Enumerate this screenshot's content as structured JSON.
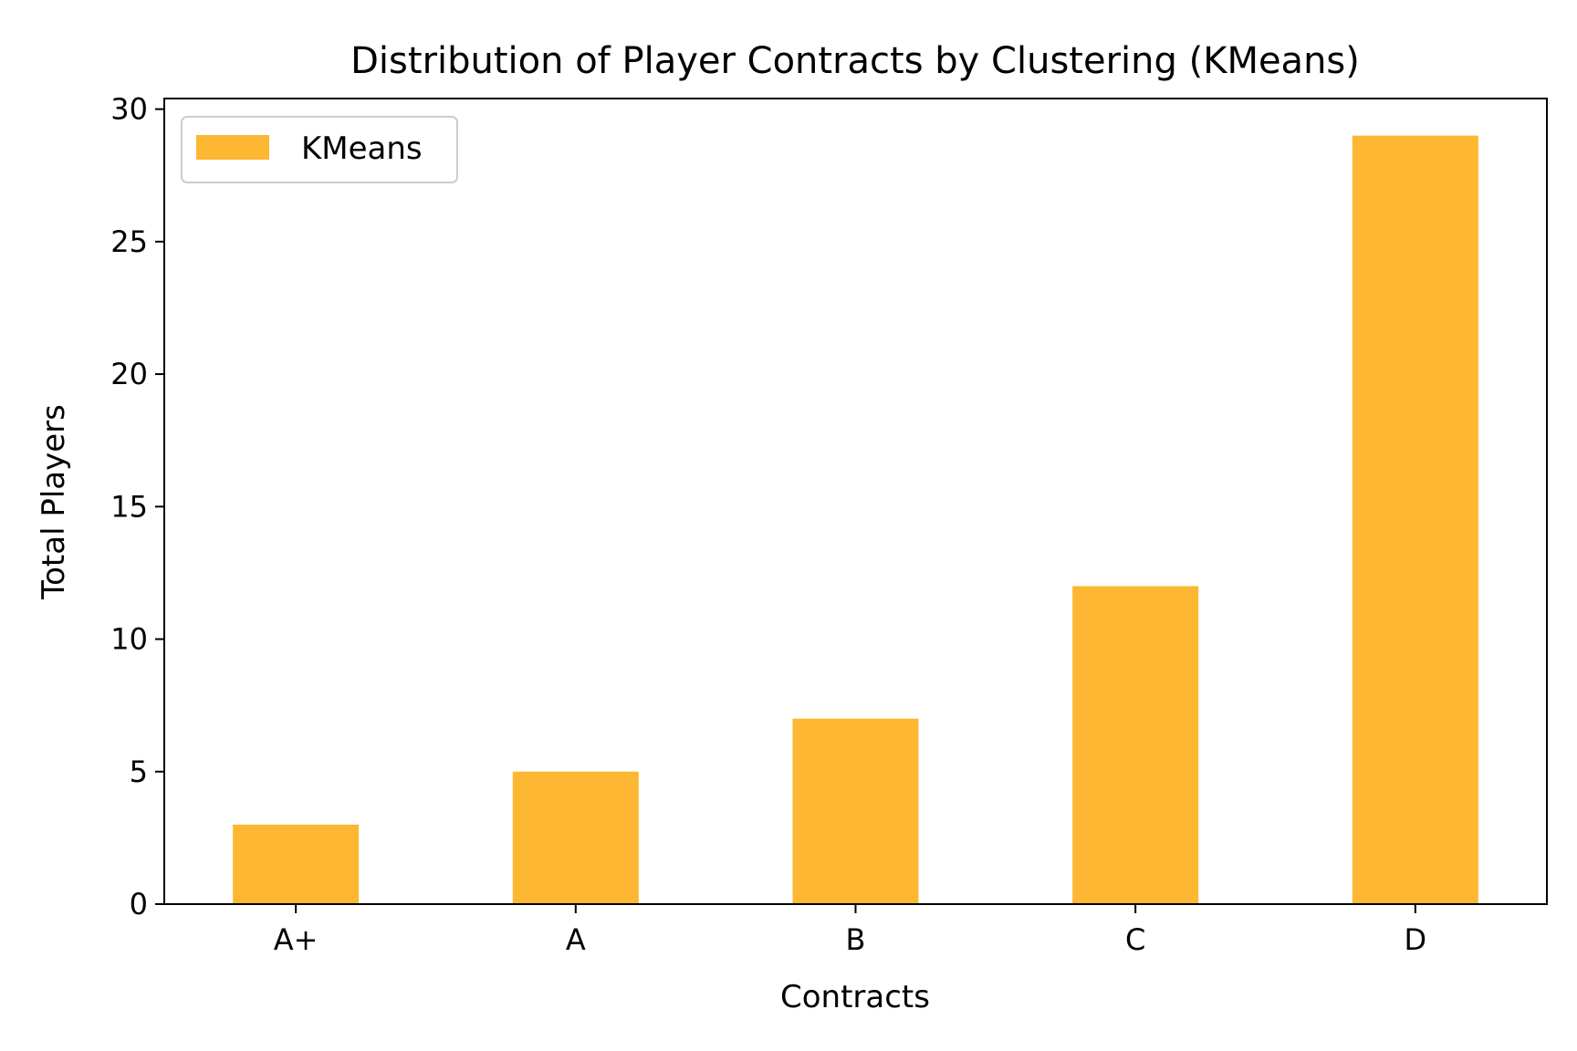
{
  "chart_data": {
    "type": "bar",
    "title": "Distribution of Player Contracts by Clustering (KMeans)",
    "xlabel": "Contracts",
    "ylabel": "Total Players",
    "categories": [
      "A+",
      "A",
      "B",
      "C",
      "D"
    ],
    "series": [
      {
        "name": "KMeans",
        "values": [
          3,
          5,
          7,
          12,
          29
        ]
      }
    ],
    "ylim": [
      0,
      30.4
    ],
    "yticks": [
      0,
      5,
      10,
      15,
      20,
      25,
      30
    ],
    "ytick_labels": [
      "0",
      "5",
      "10",
      "15",
      "20",
      "25",
      "30"
    ],
    "grid": false,
    "legend_position": "top-left",
    "colors": {
      "bar": "#FDB733",
      "axis": "#000000",
      "legend_border": "#CCCCCC"
    }
  }
}
